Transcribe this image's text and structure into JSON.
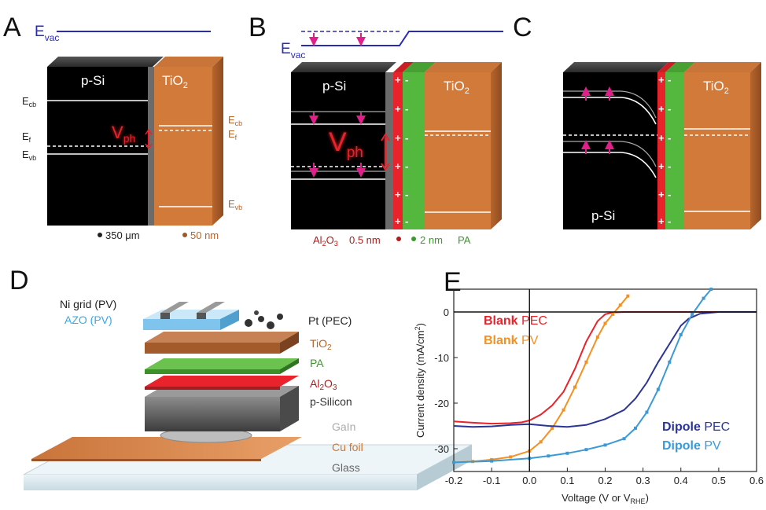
{
  "colors": {
    "vacuum_level": "#2a2ab8",
    "silicon": "#000000",
    "tio2": "#d27a3a",
    "al2o3": "#e8232b",
    "pa": "#55b83e",
    "arrow_magenta": "#e0208a",
    "vph_red": "#e8232b",
    "blank_pec": "#e8232b",
    "blank_pv": "#f39122",
    "dipole_pec": "#2b3595",
    "dipole_pv": "#3b9ad6",
    "azo": "#7ec4ec",
    "text_brown": "#b5642a",
    "text_dark_red": "#b51a1a",
    "text_green": "#3a9a2a"
  },
  "panel_A": {
    "letter": "A",
    "evac": "E",
    "evac_sub": "vac",
    "si": "p-Si",
    "tio2_main": "TiO",
    "tio2_sub": "2",
    "ecb": "E",
    "ecb_sub": "cb",
    "ef": "E",
    "ef_sub": "f",
    "evb": "E",
    "evb_sub": "vb",
    "vph": "V",
    "vph_sub": "ph",
    "thick_si": "350 μm",
    "thick_tio2": "50 nm"
  },
  "panel_B": {
    "letter": "B",
    "evac": "E",
    "evac_sub": "vac",
    "si": "p-Si",
    "tio2_main": "TiO",
    "tio2_sub": "2",
    "vph": "V",
    "vph_sub": "ph",
    "al2o3_main": "Al",
    "al2o3_sub1": "2",
    "al2o3_mid": "O",
    "al2o3_sub2": "3",
    "al2o3_thick": "0.5 nm",
    "pa_thick": "2 nm",
    "pa": "PA",
    "plus": "+",
    "minus": "-"
  },
  "panel_C": {
    "letter": "C",
    "si": "p-Si",
    "tio2_main": "TiO",
    "tio2_sub": "2",
    "plus": "+",
    "minus": "-"
  },
  "panel_D": {
    "letter": "D",
    "ni_grid": "Ni grid (PV)",
    "azo": "AZO (PV)",
    "pt": "Pt (PEC)",
    "tio2_main": "TiO",
    "tio2_sub": "2",
    "pa": "PA",
    "al2o3_main": "Al",
    "al2o3_sub1": "2",
    "al2o3_mid": "O",
    "al2o3_sub2": "3",
    "psi": "p-Silicon",
    "gain": "GaIn",
    "cu": "Cu foil",
    "glass": "Glass"
  },
  "panel_E": {
    "letter": "E",
    "legend": [
      {
        "bold": "Blank",
        "rest": " PEC",
        "key": "blank_pec"
      },
      {
        "bold": "Blank",
        "rest": " PV",
        "key": "blank_pv"
      },
      {
        "bold": "Dipole",
        "rest": " PEC",
        "key": "dipole_pec"
      },
      {
        "bold": "Dipole",
        "rest": " PV",
        "key": "dipole_pv"
      }
    ]
  },
  "chart_data": {
    "type": "line",
    "title": "",
    "xlabel": "Voltage (V or V",
    "xlabel_sub": "RHE",
    "xlabel_end": ")",
    "ylabel": "Current density (mA/cm",
    "ylabel_sup": "2",
    "ylabel_end": ")",
    "xlim": [
      -0.2,
      0.6
    ],
    "ylim": [
      -35,
      5
    ],
    "x_ticks": [
      "-0.2",
      "-0.1",
      "0.0",
      "0.1",
      "0.2",
      "0.3",
      "0.4",
      "0.5",
      "0.6"
    ],
    "x_tick_values": [
      -0.2,
      -0.1,
      0.0,
      0.1,
      0.2,
      0.3,
      0.4,
      0.5,
      0.6
    ],
    "y_ticks": [
      "0",
      "-10",
      "-20",
      "-30"
    ],
    "y_tick_values": [
      0,
      -10,
      -20,
      -30
    ],
    "series": [
      {
        "name": "Blank PEC",
        "key": "blank_pec",
        "markers": false,
        "x": [
          -0.2,
          -0.15,
          -0.1,
          -0.05,
          -0.02,
          0.0,
          0.03,
          0.06,
          0.09,
          0.12,
          0.15,
          0.18,
          0.2,
          0.22,
          0.25,
          0.3,
          0.4,
          0.5,
          0.6
        ],
        "y": [
          -24,
          -24.3,
          -24.5,
          -24.4,
          -24.2,
          -23.8,
          -22.5,
          -20.5,
          -17.5,
          -12.5,
          -6.5,
          -2,
          -0.5,
          -0.1,
          0,
          0,
          0,
          0,
          0
        ]
      },
      {
        "name": "Blank PV",
        "key": "blank_pv",
        "markers": true,
        "x": [
          -0.2,
          -0.15,
          -0.1,
          -0.05,
          0.0,
          0.03,
          0.06,
          0.09,
          0.12,
          0.15,
          0.18,
          0.2,
          0.22,
          0.24,
          0.26
        ],
        "y": [
          -33,
          -32.8,
          -32.4,
          -31.8,
          -30.5,
          -28.5,
          -25.5,
          -21.5,
          -16.5,
          -11,
          -5.5,
          -2.5,
          -0.5,
          1.5,
          3.5
        ]
      },
      {
        "name": "Dipole PEC",
        "key": "dipole_pec",
        "markers": false,
        "x": [
          -0.2,
          -0.15,
          -0.1,
          -0.05,
          0.0,
          0.05,
          0.1,
          0.15,
          0.2,
          0.25,
          0.28,
          0.31,
          0.34,
          0.37,
          0.4,
          0.42,
          0.45,
          0.5,
          0.6
        ],
        "y": [
          -25,
          -25.2,
          -25.1,
          -24.8,
          -24.6,
          -25,
          -25.2,
          -24.8,
          -23.5,
          -21.5,
          -19,
          -15.5,
          -11,
          -7,
          -3,
          -1.5,
          -0.4,
          0,
          0
        ]
      },
      {
        "name": "Dipole PV",
        "key": "dipole_pv",
        "markers": true,
        "x": [
          -0.2,
          -0.1,
          0.0,
          0.05,
          0.1,
          0.15,
          0.2,
          0.25,
          0.28,
          0.31,
          0.34,
          0.37,
          0.4,
          0.43,
          0.46,
          0.48
        ],
        "y": [
          -33,
          -32.7,
          -32.1,
          -31.6,
          -31,
          -30.2,
          -29.2,
          -27.8,
          -25.5,
          -22,
          -17,
          -11,
          -5,
          -0.5,
          3,
          5
        ]
      }
    ]
  }
}
